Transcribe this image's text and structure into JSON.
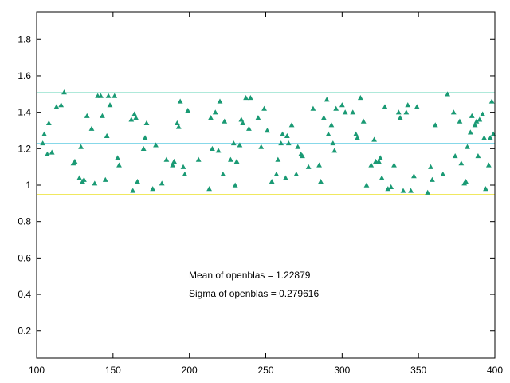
{
  "chart_data": {
    "type": "scatter",
    "title": "",
    "xlabel": "",
    "ylabel": "",
    "xlim": [
      100,
      400
    ],
    "ylim": [
      0.05,
      1.95
    ],
    "x_ticks": [
      100,
      150,
      200,
      250,
      300,
      350,
      400
    ],
    "y_ticks": [
      0.2,
      0.4,
      0.6,
      0.8,
      1,
      1.2,
      1.4,
      1.6,
      1.8
    ],
    "x_tick_labels": [
      "100",
      "150",
      "200",
      "250",
      "300",
      "350",
      "400"
    ],
    "y_tick_labels": [
      "0.2",
      "0.4",
      "0.6",
      "0.8",
      "1",
      "1.2",
      "1.4",
      "1.6",
      "1.8"
    ],
    "grid": false,
    "legend": "none",
    "marker": "triangle",
    "marker_color": "#1a9a74",
    "reference_lines": [
      {
        "y": 1.5075,
        "color": "#5fd3b4"
      },
      {
        "y": 1.22879,
        "color": "#76d3e6"
      },
      {
        "y": 0.9492,
        "color": "#f0e860"
      }
    ],
    "annotations": [
      "Mean of openblas = 1.22879",
      "Sigma of openblas = 0.279616"
    ],
    "points": [
      [
        104,
        1.23
      ],
      [
        105,
        1.28
      ],
      [
        107,
        1.17
      ],
      [
        108,
        1.34
      ],
      [
        110,
        1.18
      ],
      [
        113,
        1.43
      ],
      [
        116,
        1.44
      ],
      [
        118,
        1.51
      ],
      [
        124,
        1.12
      ],
      [
        125,
        1.13
      ],
      [
        128,
        1.04
      ],
      [
        129,
        1.21
      ],
      [
        130,
        1.02
      ],
      [
        131,
        1.03
      ],
      [
        133,
        1.38
      ],
      [
        136,
        1.31
      ],
      [
        138,
        1.01
      ],
      [
        140,
        1.49
      ],
      [
        142,
        1.49
      ],
      [
        143,
        1.38
      ],
      [
        145,
        1.03
      ],
      [
        146,
        1.27
      ],
      [
        147,
        1.49
      ],
      [
        148,
        1.44
      ],
      [
        151,
        1.49
      ],
      [
        153,
        1.15
      ],
      [
        154,
        1.11
      ],
      [
        162,
        1.36
      ],
      [
        163,
        0.97
      ],
      [
        164,
        1.39
      ],
      [
        165,
        1.37
      ],
      [
        166,
        1.02
      ],
      [
        170,
        1.2
      ],
      [
        171,
        1.26
      ],
      [
        172,
        1.34
      ],
      [
        176,
        0.98
      ],
      [
        178,
        1.22
      ],
      [
        182,
        1.01
      ],
      [
        185,
        1.14
      ],
      [
        189,
        1.11
      ],
      [
        190,
        1.13
      ],
      [
        192,
        1.34
      ],
      [
        193,
        1.32
      ],
      [
        194,
        1.46
      ],
      [
        196,
        1.1
      ],
      [
        197,
        1.06
      ],
      [
        199,
        1.41
      ],
      [
        206,
        1.14
      ],
      [
        213,
        0.98
      ],
      [
        214,
        1.37
      ],
      [
        215,
        1.2
      ],
      [
        217,
        1.4
      ],
      [
        219,
        1.19
      ],
      [
        220,
        1.46
      ],
      [
        222,
        1.06
      ],
      [
        223,
        1.35
      ],
      [
        227,
        1.14
      ],
      [
        229,
        1.23
      ],
      [
        230,
        1.0
      ],
      [
        231,
        1.13
      ],
      [
        233,
        1.22
      ],
      [
        234,
        1.36
      ],
      [
        235,
        1.34
      ],
      [
        237,
        1.48
      ],
      [
        239,
        1.31
      ],
      [
        240,
        1.48
      ],
      [
        245,
        1.37
      ],
      [
        247,
        1.21
      ],
      [
        249,
        1.42
      ],
      [
        251,
        1.3
      ],
      [
        254,
        1.02
      ],
      [
        257,
        1.06
      ],
      [
        258,
        1.14
      ],
      [
        260,
        1.23
      ],
      [
        261,
        1.28
      ],
      [
        263,
        1.04
      ],
      [
        264,
        1.27
      ],
      [
        265,
        1.23
      ],
      [
        267,
        1.33
      ],
      [
        270,
        1.06
      ],
      [
        271,
        1.21
      ],
      [
        273,
        1.17
      ],
      [
        274,
        1.16
      ],
      [
        278,
        1.1
      ],
      [
        281,
        1.42
      ],
      [
        285,
        1.11
      ],
      [
        286,
        1.02
      ],
      [
        288,
        1.37
      ],
      [
        290,
        1.47
      ],
      [
        291,
        1.28
      ],
      [
        293,
        1.33
      ],
      [
        294,
        1.23
      ],
      [
        295,
        1.19
      ],
      [
        296,
        1.42
      ],
      [
        300,
        1.44
      ],
      [
        302,
        1.4
      ],
      [
        307,
        1.4
      ],
      [
        309,
        1.28
      ],
      [
        310,
        1.26
      ],
      [
        312,
        1.48
      ],
      [
        314,
        1.35
      ],
      [
        316,
        1.0
      ],
      [
        319,
        1.11
      ],
      [
        321,
        1.25
      ],
      [
        322,
        1.13
      ],
      [
        324,
        1.13
      ],
      [
        325,
        1.15
      ],
      [
        326,
        1.04
      ],
      [
        328,
        1.43
      ],
      [
        330,
        0.98
      ],
      [
        332,
        0.99
      ],
      [
        334,
        1.11
      ],
      [
        337,
        1.4
      ],
      [
        338,
        1.37
      ],
      [
        340,
        0.97
      ],
      [
        342,
        1.4
      ],
      [
        343,
        1.44
      ],
      [
        345,
        0.97
      ],
      [
        347,
        1.05
      ],
      [
        349,
        1.43
      ],
      [
        356,
        0.96
      ],
      [
        358,
        1.1
      ],
      [
        359,
        1.03
      ],
      [
        361,
        1.33
      ],
      [
        366,
        1.06
      ],
      [
        369,
        1.5
      ],
      [
        373,
        1.4
      ],
      [
        374,
        1.16
      ],
      [
        377,
        1.35
      ],
      [
        378,
        1.12
      ],
      [
        380,
        1.01
      ],
      [
        381,
        1.02
      ],
      [
        382,
        1.21
      ],
      [
        384,
        1.29
      ],
      [
        385,
        1.38
      ],
      [
        387,
        1.33
      ],
      [
        388,
        1.35
      ],
      [
        389,
        1.16
      ],
      [
        390,
        1.36
      ],
      [
        392,
        1.39
      ],
      [
        393,
        1.26
      ],
      [
        394,
        0.98
      ],
      [
        396,
        1.11
      ],
      [
        397,
        1.26
      ],
      [
        398,
        1.46
      ],
      [
        399,
        1.28
      ]
    ]
  }
}
